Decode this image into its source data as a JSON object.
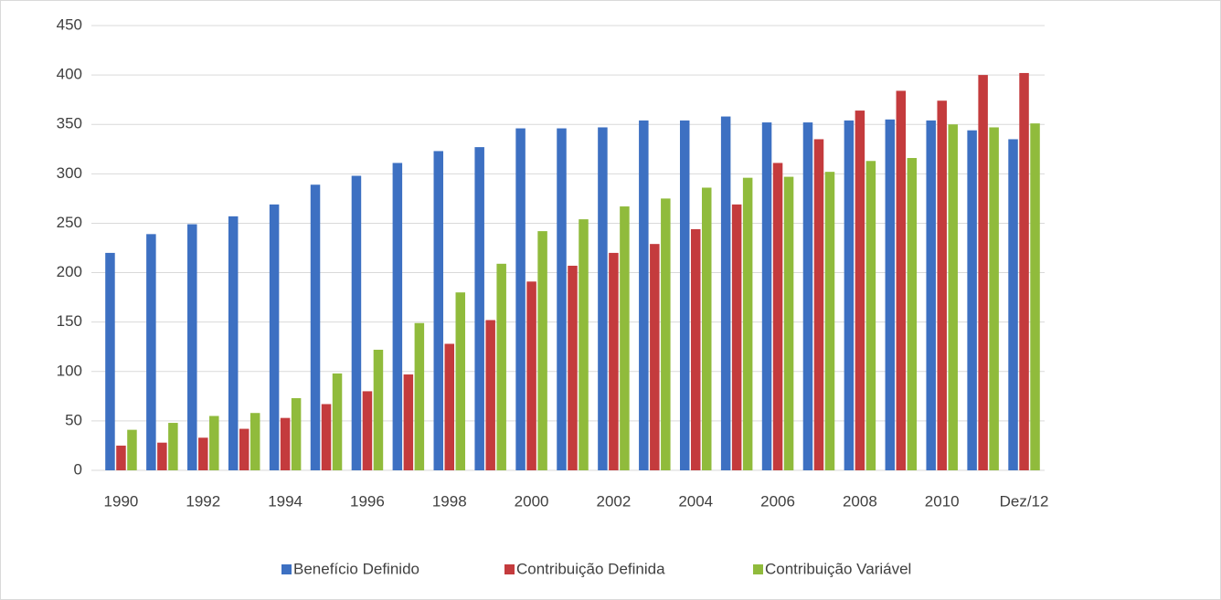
{
  "chart_data": {
    "type": "bar",
    "categories": [
      "1990",
      null,
      "1992",
      null,
      "1994",
      null,
      "1996",
      null,
      "1998",
      null,
      "2000",
      null,
      "2002",
      null,
      "2004",
      null,
      "2006",
      null,
      "2008",
      null,
      "2010",
      null,
      "Dez/12"
    ],
    "series": [
      {
        "name": "Benefício Definido",
        "color": "#3d70c2",
        "values": [
          220,
          239,
          249,
          257,
          269,
          289,
          298,
          311,
          323,
          327,
          346,
          346,
          347,
          354,
          354,
          358,
          352,
          352,
          354,
          355,
          354,
          344,
          335
        ]
      },
      {
        "name": "Contribuição Definida",
        "color": "#c43b3d",
        "values": [
          25,
          28,
          33,
          42,
          53,
          67,
          80,
          97,
          128,
          152,
          191,
          207,
          220,
          229,
          244,
          269,
          311,
          335,
          364,
          384,
          374,
          400,
          402
        ]
      },
      {
        "name": "Contribuição Variável",
        "color": "#90bb3c",
        "values": [
          41,
          48,
          55,
          58,
          73,
          98,
          122,
          149,
          180,
          209,
          242,
          254,
          267,
          275,
          286,
          296,
          297,
          302,
          313,
          316,
          350,
          347,
          351
        ]
      }
    ],
    "ylim": [
      0,
      450
    ],
    "yticks": [
      0,
      50,
      100,
      150,
      200,
      250,
      300,
      350,
      400,
      450
    ],
    "grid": true,
    "legend": "bottom"
  }
}
